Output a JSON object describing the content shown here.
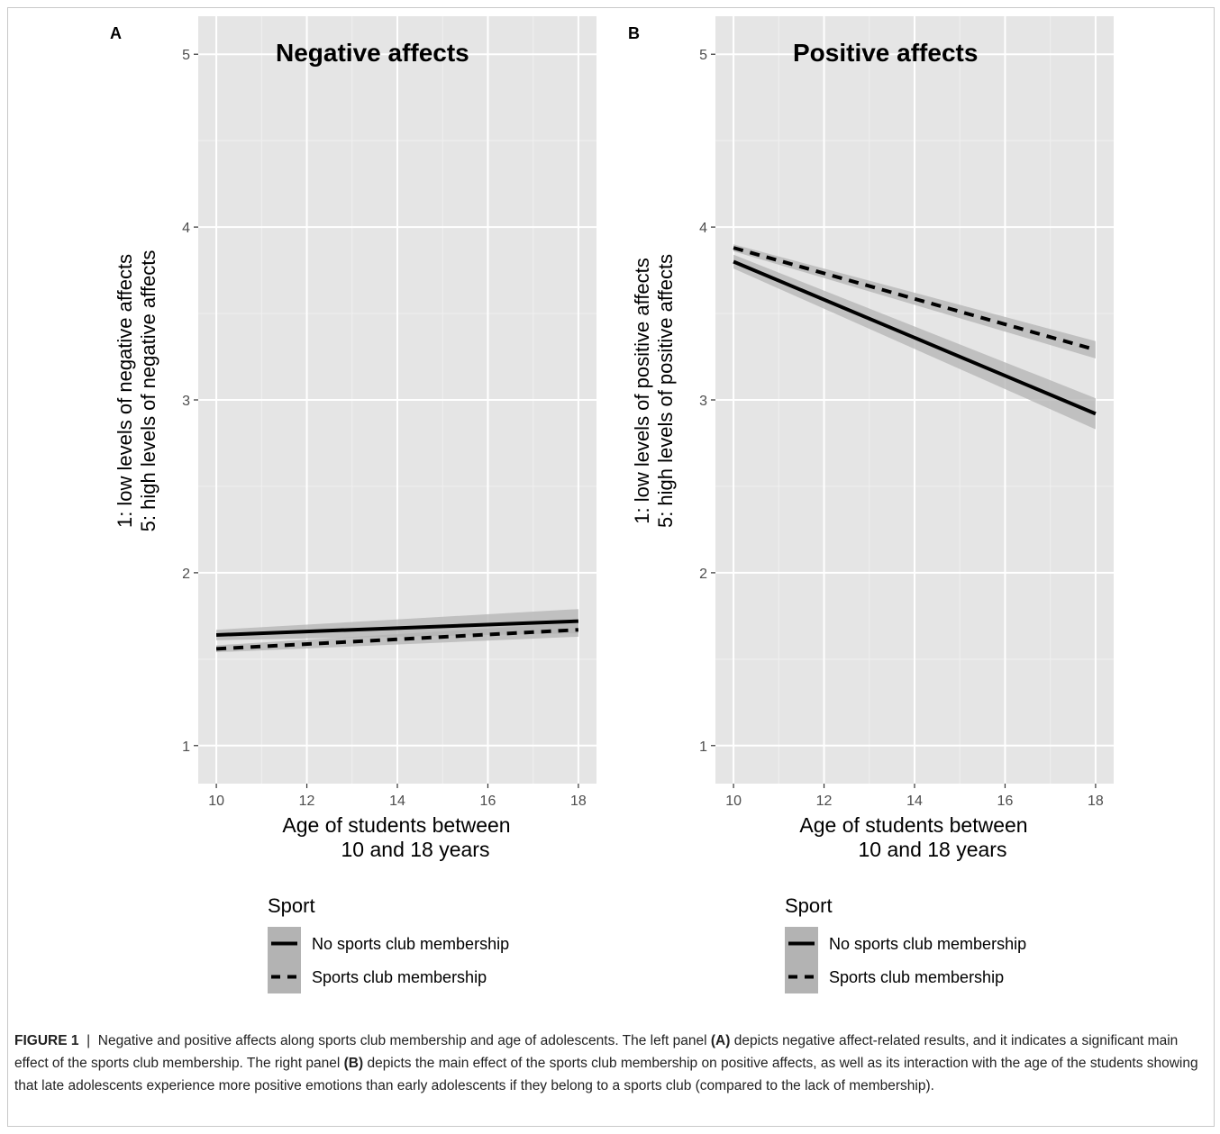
{
  "chart_data": [
    {
      "panel_label": "A",
      "type": "line",
      "title": "Negative affects",
      "ylabel_lines": [
        "1: low levels of negative affects",
        "5: high levels of negative affects"
      ],
      "xlabel_lines": [
        "Age of students between",
        "10 and 18 years"
      ],
      "xlim": [
        10,
        18
      ],
      "ylim": [
        1,
        5
      ],
      "xticks": [
        "10",
        "12",
        "14",
        "16",
        "18"
      ],
      "yticks": [
        "1",
        "2",
        "3",
        "4",
        "5"
      ],
      "grid": true,
      "series": [
        {
          "name": "No sports club membership",
          "style": "solid",
          "x": [
            10,
            18
          ],
          "y": [
            1.64,
            1.72
          ],
          "ci_low": [
            1.61,
            1.65
          ],
          "ci_high": [
            1.67,
            1.79
          ]
        },
        {
          "name": "Sports club membership",
          "style": "dashed",
          "x": [
            10,
            18
          ],
          "y": [
            1.56,
            1.67
          ],
          "ci_low": [
            1.54,
            1.63
          ],
          "ci_high": [
            1.58,
            1.71
          ]
        }
      ],
      "legend_title": "Sport",
      "legend_position": "bottom"
    },
    {
      "panel_label": "B",
      "type": "line",
      "title": "Positive affects",
      "ylabel_lines": [
        "1: low levels of positive affects",
        "5: high levels of positive affects"
      ],
      "xlabel_lines": [
        "Age of students between",
        "10 and 18 years"
      ],
      "xlim": [
        10,
        18
      ],
      "ylim": [
        1,
        5
      ],
      "xticks": [
        "10",
        "12",
        "14",
        "16",
        "18"
      ],
      "yticks": [
        "1",
        "2",
        "3",
        "4",
        "5"
      ],
      "grid": true,
      "series": [
        {
          "name": "No sports club membership",
          "style": "solid",
          "x": [
            10,
            18
          ],
          "y": [
            3.8,
            2.92
          ],
          "ci_low": [
            3.76,
            2.83
          ],
          "ci_high": [
            3.84,
            3.01
          ]
        },
        {
          "name": "Sports club membership",
          "style": "dashed",
          "x": [
            10,
            18
          ],
          "y": [
            3.88,
            3.29
          ],
          "ci_low": [
            3.86,
            3.24
          ],
          "ci_high": [
            3.9,
            3.34
          ]
        }
      ],
      "legend_title": "Sport",
      "legend_position": "bottom"
    }
  ],
  "caption": {
    "figure_label": "FIGURE 1",
    "separator": "|",
    "text_1": "Negative and positive affects along sports club membership and age of adolescents. The left panel ",
    "panel_a": "(A)",
    "text_2": " depicts negative affect-related results, and it indicates a significant main effect of the sports club membership. The right panel ",
    "panel_b": "(B)",
    "text_3": " depicts the main effect of the sports club membership on positive affects, as well as its interaction with the age of the students showing that late adolescents experience more positive emotions than early adolescents if they belong to a sports club (compared to the lack of membership)."
  },
  "colors": {
    "panel_bg": "#e5e5e5",
    "grid_major": "#ffffff",
    "grid_minor": "#f0f0f0",
    "ci_band": "#b3b3b3",
    "line": "#000000"
  }
}
